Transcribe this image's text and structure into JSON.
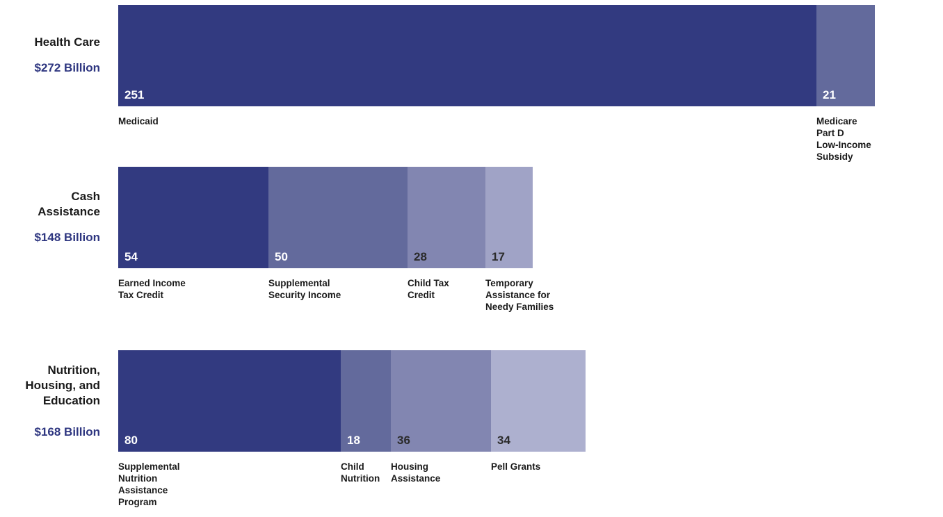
{
  "chart_data": {
    "type": "bar",
    "orientation": "horizontal",
    "stacked": true,
    "units": "Billion",
    "groups": [
      {
        "title": "Health Care",
        "total_label": "$272 Billion",
        "segments": [
          {
            "label": "Medicaid",
            "value": 251,
            "value_label": "251",
            "color": "#323a80",
            "text_color": "#ffffff"
          },
          {
            "label": "Medicare\nPart D\nLow-Income\nSubsidy",
            "value": 21,
            "value_label": "21",
            "color": "#636a9c",
            "text_color": "#ffffff"
          }
        ]
      },
      {
        "title": "Cash\nAssistance",
        "total_label": "$148 Billion",
        "segments": [
          {
            "label": "Earned Income\nTax Credit",
            "value": 54,
            "value_label": "54",
            "color": "#323a80",
            "text_color": "#ffffff"
          },
          {
            "label": "Supplemental\nSecurity Income",
            "value": 50,
            "value_label": "50",
            "color": "#636a9c",
            "text_color": "#ffffff"
          },
          {
            "label": "Child Tax\nCredit",
            "value": 28,
            "value_label": "28",
            "color": "#8286b1",
            "text_color": "#2b2b2b"
          },
          {
            "label": "Temporary\nAssistance for\nNeedy Families",
            "value": 17,
            "value_label": "17",
            "color": "#a0a3c6",
            "text_color": "#2b2b2b"
          }
        ]
      },
      {
        "title": "Nutrition,\nHousing, and\nEducation",
        "total_label": "$168 Billion",
        "segments": [
          {
            "label": "Supplemental\nNutrition\nAssistance\nProgram",
            "value": 80,
            "value_label": "80",
            "color": "#323a80",
            "text_color": "#ffffff"
          },
          {
            "label": "Child\nNutrition",
            "value": 18,
            "value_label": "18",
            "color": "#636a9c",
            "text_color": "#ffffff"
          },
          {
            "label": "Housing\nAssistance",
            "value": 36,
            "value_label": "36",
            "color": "#8286b1",
            "text_color": "#2b2b2b"
          },
          {
            "label": "Pell Grants",
            "value": 34,
            "value_label": "34",
            "color": "#adb0cf",
            "text_color": "#2b2b2b"
          }
        ]
      }
    ]
  }
}
